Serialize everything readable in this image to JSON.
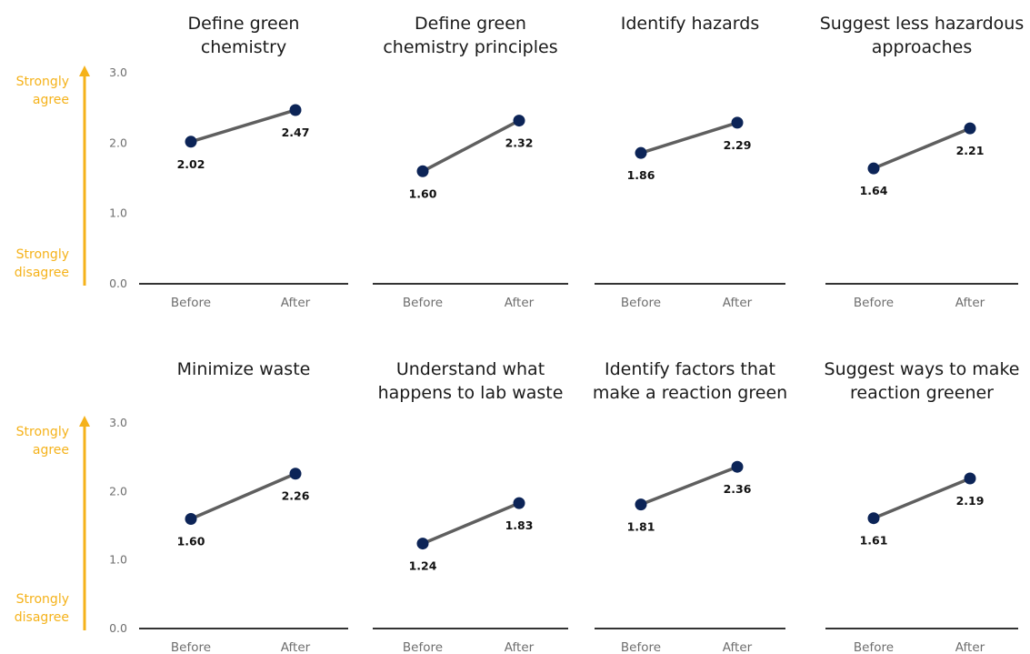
{
  "colors": {
    "point": "#0c2457",
    "line": "#5f5f5f",
    "axis": "#333333",
    "scale_arrow": "#f5b21a"
  },
  "scale": {
    "top_label": [
      "Strongly",
      "agree"
    ],
    "bottom_label": [
      "Strongly",
      "disagree"
    ]
  },
  "chart_data": [
    {
      "type": "line",
      "title": [
        "Define green",
        "chemistry"
      ],
      "categories": [
        "Before",
        "After"
      ],
      "values": [
        2.02,
        2.47
      ],
      "value_labels": [
        "2.02",
        "2.47"
      ],
      "yticks": [
        "0.0",
        "1.0",
        "2.0",
        "3.0"
      ],
      "ylim": [
        0,
        3
      ]
    },
    {
      "type": "line",
      "title": [
        "Define green",
        "chemistry principles"
      ],
      "categories": [
        "Before",
        "After"
      ],
      "values": [
        1.6,
        2.32
      ],
      "value_labels": [
        "1.60",
        "2.32"
      ],
      "yticks": [],
      "ylim": [
        0,
        3
      ]
    },
    {
      "type": "line",
      "title": [
        "Identify hazards"
      ],
      "categories": [
        "Before",
        "After"
      ],
      "values": [
        1.86,
        2.29
      ],
      "value_labels": [
        "1.86",
        "2.29"
      ],
      "yticks": [],
      "ylim": [
        0,
        3
      ]
    },
    {
      "type": "line",
      "title": [
        "Suggest less hazardous",
        "approaches"
      ],
      "categories": [
        "Before",
        "After"
      ],
      "values": [
        1.64,
        2.21
      ],
      "value_labels": [
        "1.64",
        "2.21"
      ],
      "yticks": [],
      "ylim": [
        0,
        3
      ]
    },
    {
      "type": "line",
      "title": [
        "Minimize waste"
      ],
      "categories": [
        "Before",
        "After"
      ],
      "values": [
        1.6,
        2.26
      ],
      "value_labels": [
        "1.60",
        "2.26"
      ],
      "yticks": [
        "0.0",
        "1.0",
        "2.0",
        "3.0"
      ],
      "ylim": [
        0,
        3
      ]
    },
    {
      "type": "line",
      "title": [
        "Understand what",
        "happens to lab  waste"
      ],
      "categories": [
        "Before",
        "After"
      ],
      "values": [
        1.24,
        1.83
      ],
      "value_labels": [
        "1.24",
        "1.83"
      ],
      "yticks": [],
      "ylim": [
        0,
        3
      ]
    },
    {
      "type": "line",
      "title": [
        "Identify factors that",
        "make a reaction  green"
      ],
      "categories": [
        "Before",
        "After"
      ],
      "values": [
        1.81,
        2.36
      ],
      "value_labels": [
        "1.81",
        "2.36"
      ],
      "yticks": [],
      "ylim": [
        0,
        3
      ]
    },
    {
      "type": "line",
      "title": [
        "Suggest ways to make",
        "reaction greener"
      ],
      "categories": [
        "Before",
        "After"
      ],
      "values": [
        1.61,
        2.19
      ],
      "value_labels": [
        "1.61",
        "2.19"
      ],
      "yticks": [],
      "ylim": [
        0,
        3
      ]
    }
  ]
}
